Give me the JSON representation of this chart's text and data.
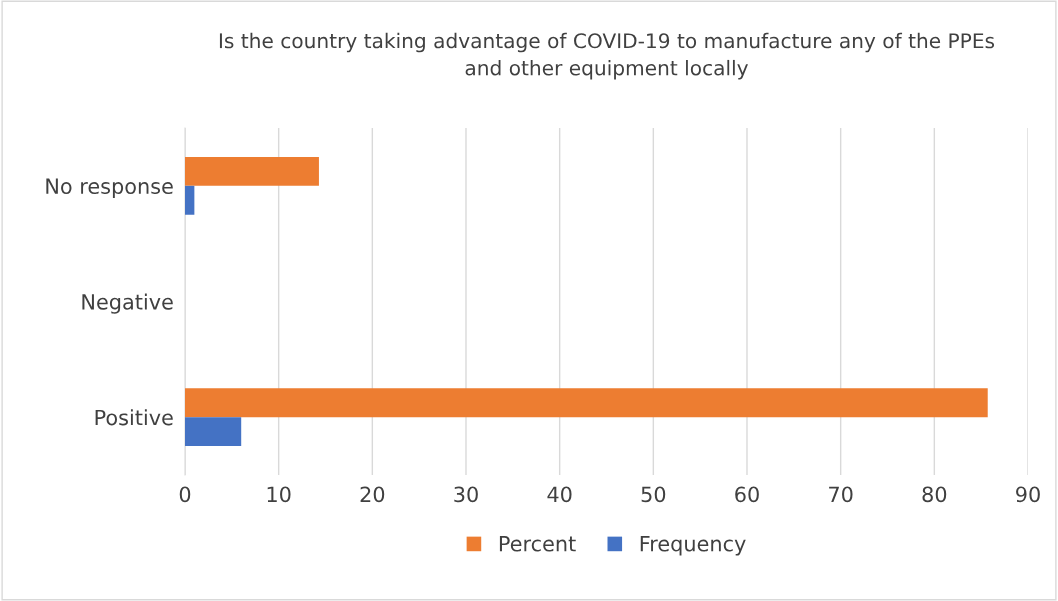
{
  "chart_data": {
    "type": "bar",
    "orientation": "horizontal",
    "title": "Is the country taking advantage of COVID-19 to manufacture any of the PPEs\nand other equipment locally",
    "categories": [
      "No response",
      "Negative",
      "Positive"
    ],
    "series": [
      {
        "name": "Percent",
        "color": "#ed7d31",
        "values": [
          14.3,
          0,
          85.7
        ]
      },
      {
        "name": "Frequency",
        "color": "#4472c4",
        "values": [
          1,
          0,
          6
        ]
      }
    ],
    "xlim": [
      0,
      90
    ],
    "xticks": [
      0,
      10,
      20,
      30,
      40,
      50,
      60,
      70,
      80,
      90
    ],
    "grid": "x",
    "legend": "bottom"
  }
}
